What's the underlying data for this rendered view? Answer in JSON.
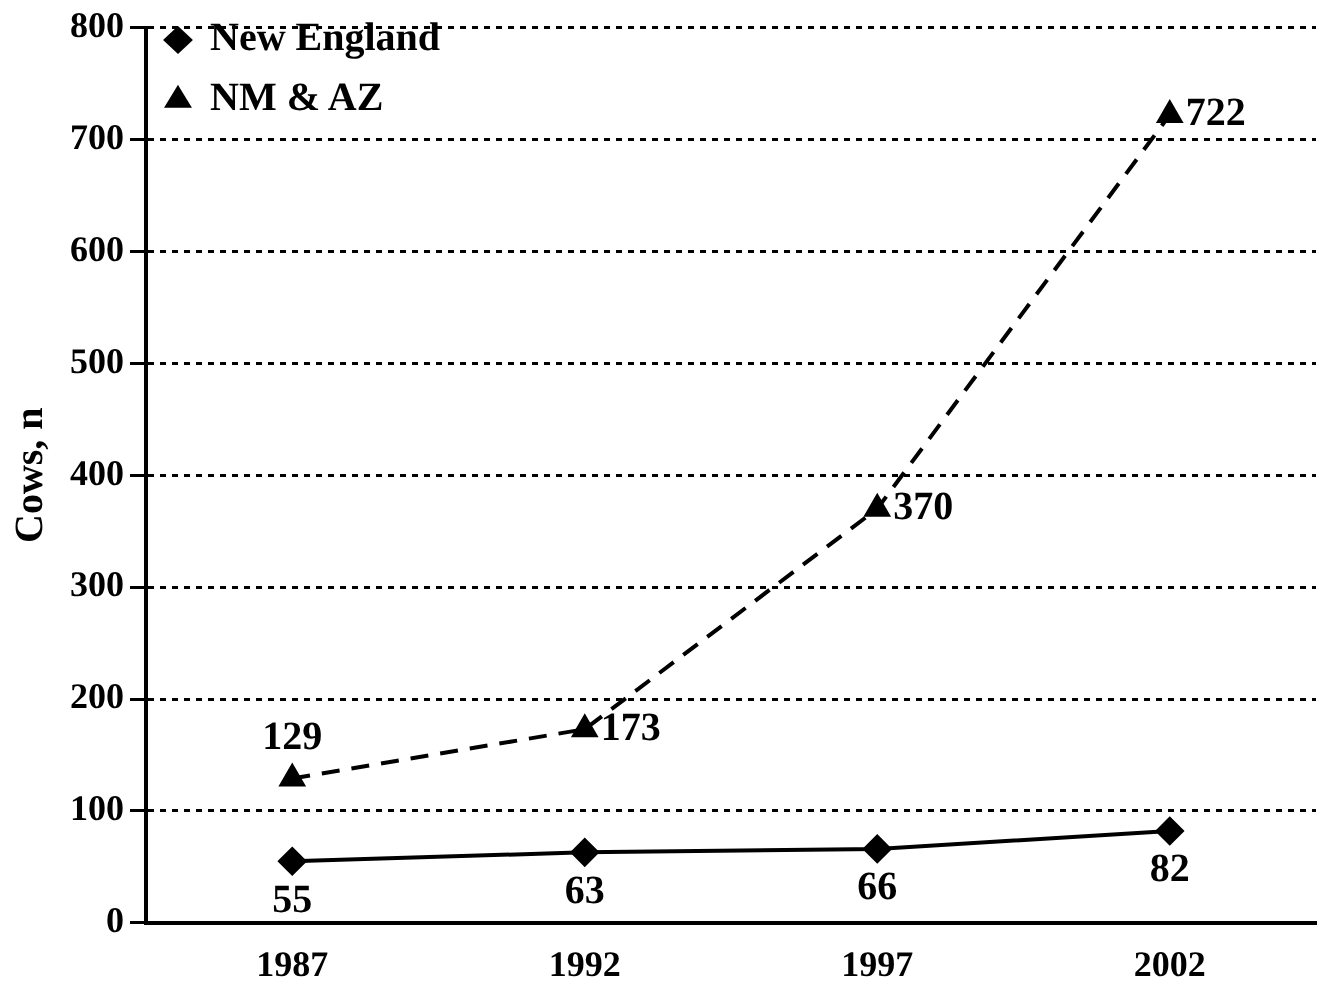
{
  "chart_data": {
    "type": "line",
    "ylabel": "Cows, n",
    "categories": [
      "1987",
      "1992",
      "1997",
      "2002"
    ],
    "series": [
      {
        "name": "New England",
        "color": "#000000",
        "values": [
          55,
          63,
          66,
          82
        ],
        "marker": "diamond",
        "line_style": "solid"
      },
      {
        "name": "NM & AZ",
        "color": "#000000",
        "values": [
          129,
          173,
          370,
          722
        ],
        "marker": "triangle",
        "line_style": "dashed"
      }
    ],
    "ylim": [
      0,
      800
    ],
    "yticks": [
      0,
      100,
      200,
      300,
      400,
      500,
      600,
      700,
      800
    ],
    "grid": "y",
    "legend": "top left",
    "data_labels": true
  }
}
